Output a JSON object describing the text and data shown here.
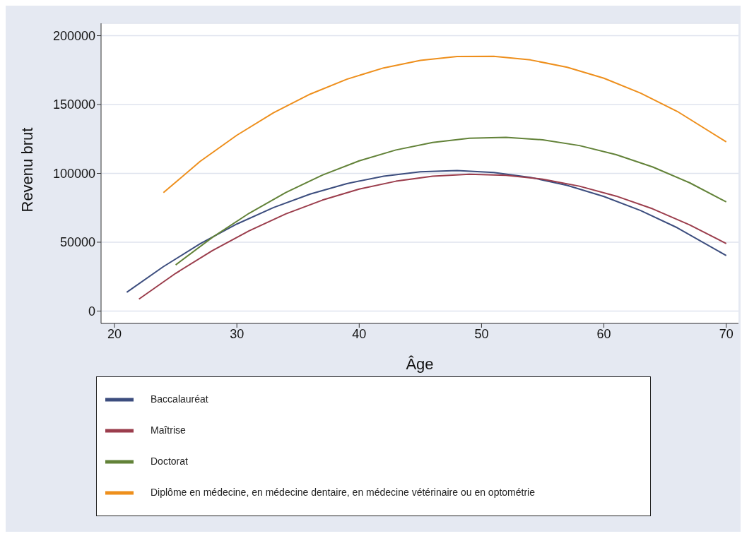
{
  "chart_data": {
    "type": "line",
    "xlabel": "Âge",
    "ylabel": "Revenu brut",
    "xlim": [
      18.9,
      71
    ],
    "xticks": [
      20,
      30,
      40,
      50,
      60,
      70
    ],
    "ylim": [
      -9000,
      209000
    ],
    "yticks": [
      0,
      50000,
      100000,
      150000,
      200000
    ],
    "grid": "y",
    "legend": "bottom",
    "marker": "none",
    "line_style": "solid",
    "series": [
      {
        "name": "Baccalauréat",
        "color": "#3c4d7e",
        "x": [
          21,
          24,
          27,
          30,
          33,
          36,
          39,
          42,
          45,
          48,
          51,
          54,
          57,
          60,
          63,
          66,
          70
        ],
        "values": [
          13600,
          32300,
          48900,
          63200,
          75200,
          85000,
          92600,
          98000,
          101100,
          102000,
          100600,
          97100,
          91300,
          83200,
          73000,
          60500,
          40300
        ]
      },
      {
        "name": "Maîtrise",
        "color": "#9b3d4c",
        "x": [
          22,
          25,
          28,
          31,
          34,
          37,
          40,
          43,
          46,
          49,
          52,
          55,
          58,
          61,
          64,
          67,
          70
        ],
        "values": [
          8700,
          27400,
          43900,
          58300,
          70600,
          80600,
          88600,
          94300,
          97900,
          99400,
          98600,
          95800,
          90700,
          83500,
          74200,
          62600,
          49000
        ]
      },
      {
        "name": "Doctorat",
        "color": "#628238",
        "x": [
          25,
          28,
          31,
          34,
          37,
          40,
          43,
          46,
          49,
          52,
          55,
          58,
          61,
          64,
          67,
          70
        ],
        "values": [
          33500,
          53500,
          71000,
          86100,
          98800,
          109100,
          117000,
          122400,
          125500,
          126100,
          124400,
          120200,
          113600,
          104600,
          93200,
          79300
        ]
      },
      {
        "name": "Diplôme en médecine, en médecine dentaire, en médecine vétérinaire ou en optométrie",
        "color": "#ee8f1c",
        "x": [
          24,
          27,
          30,
          33,
          36,
          39,
          42,
          45,
          48,
          51,
          54,
          57,
          60,
          63,
          66,
          70
        ],
        "values": [
          86000,
          108700,
          127700,
          144000,
          157600,
          168400,
          176600,
          182100,
          184900,
          185000,
          182400,
          177100,
          169100,
          158300,
          145000,
          122900
        ]
      }
    ]
  }
}
